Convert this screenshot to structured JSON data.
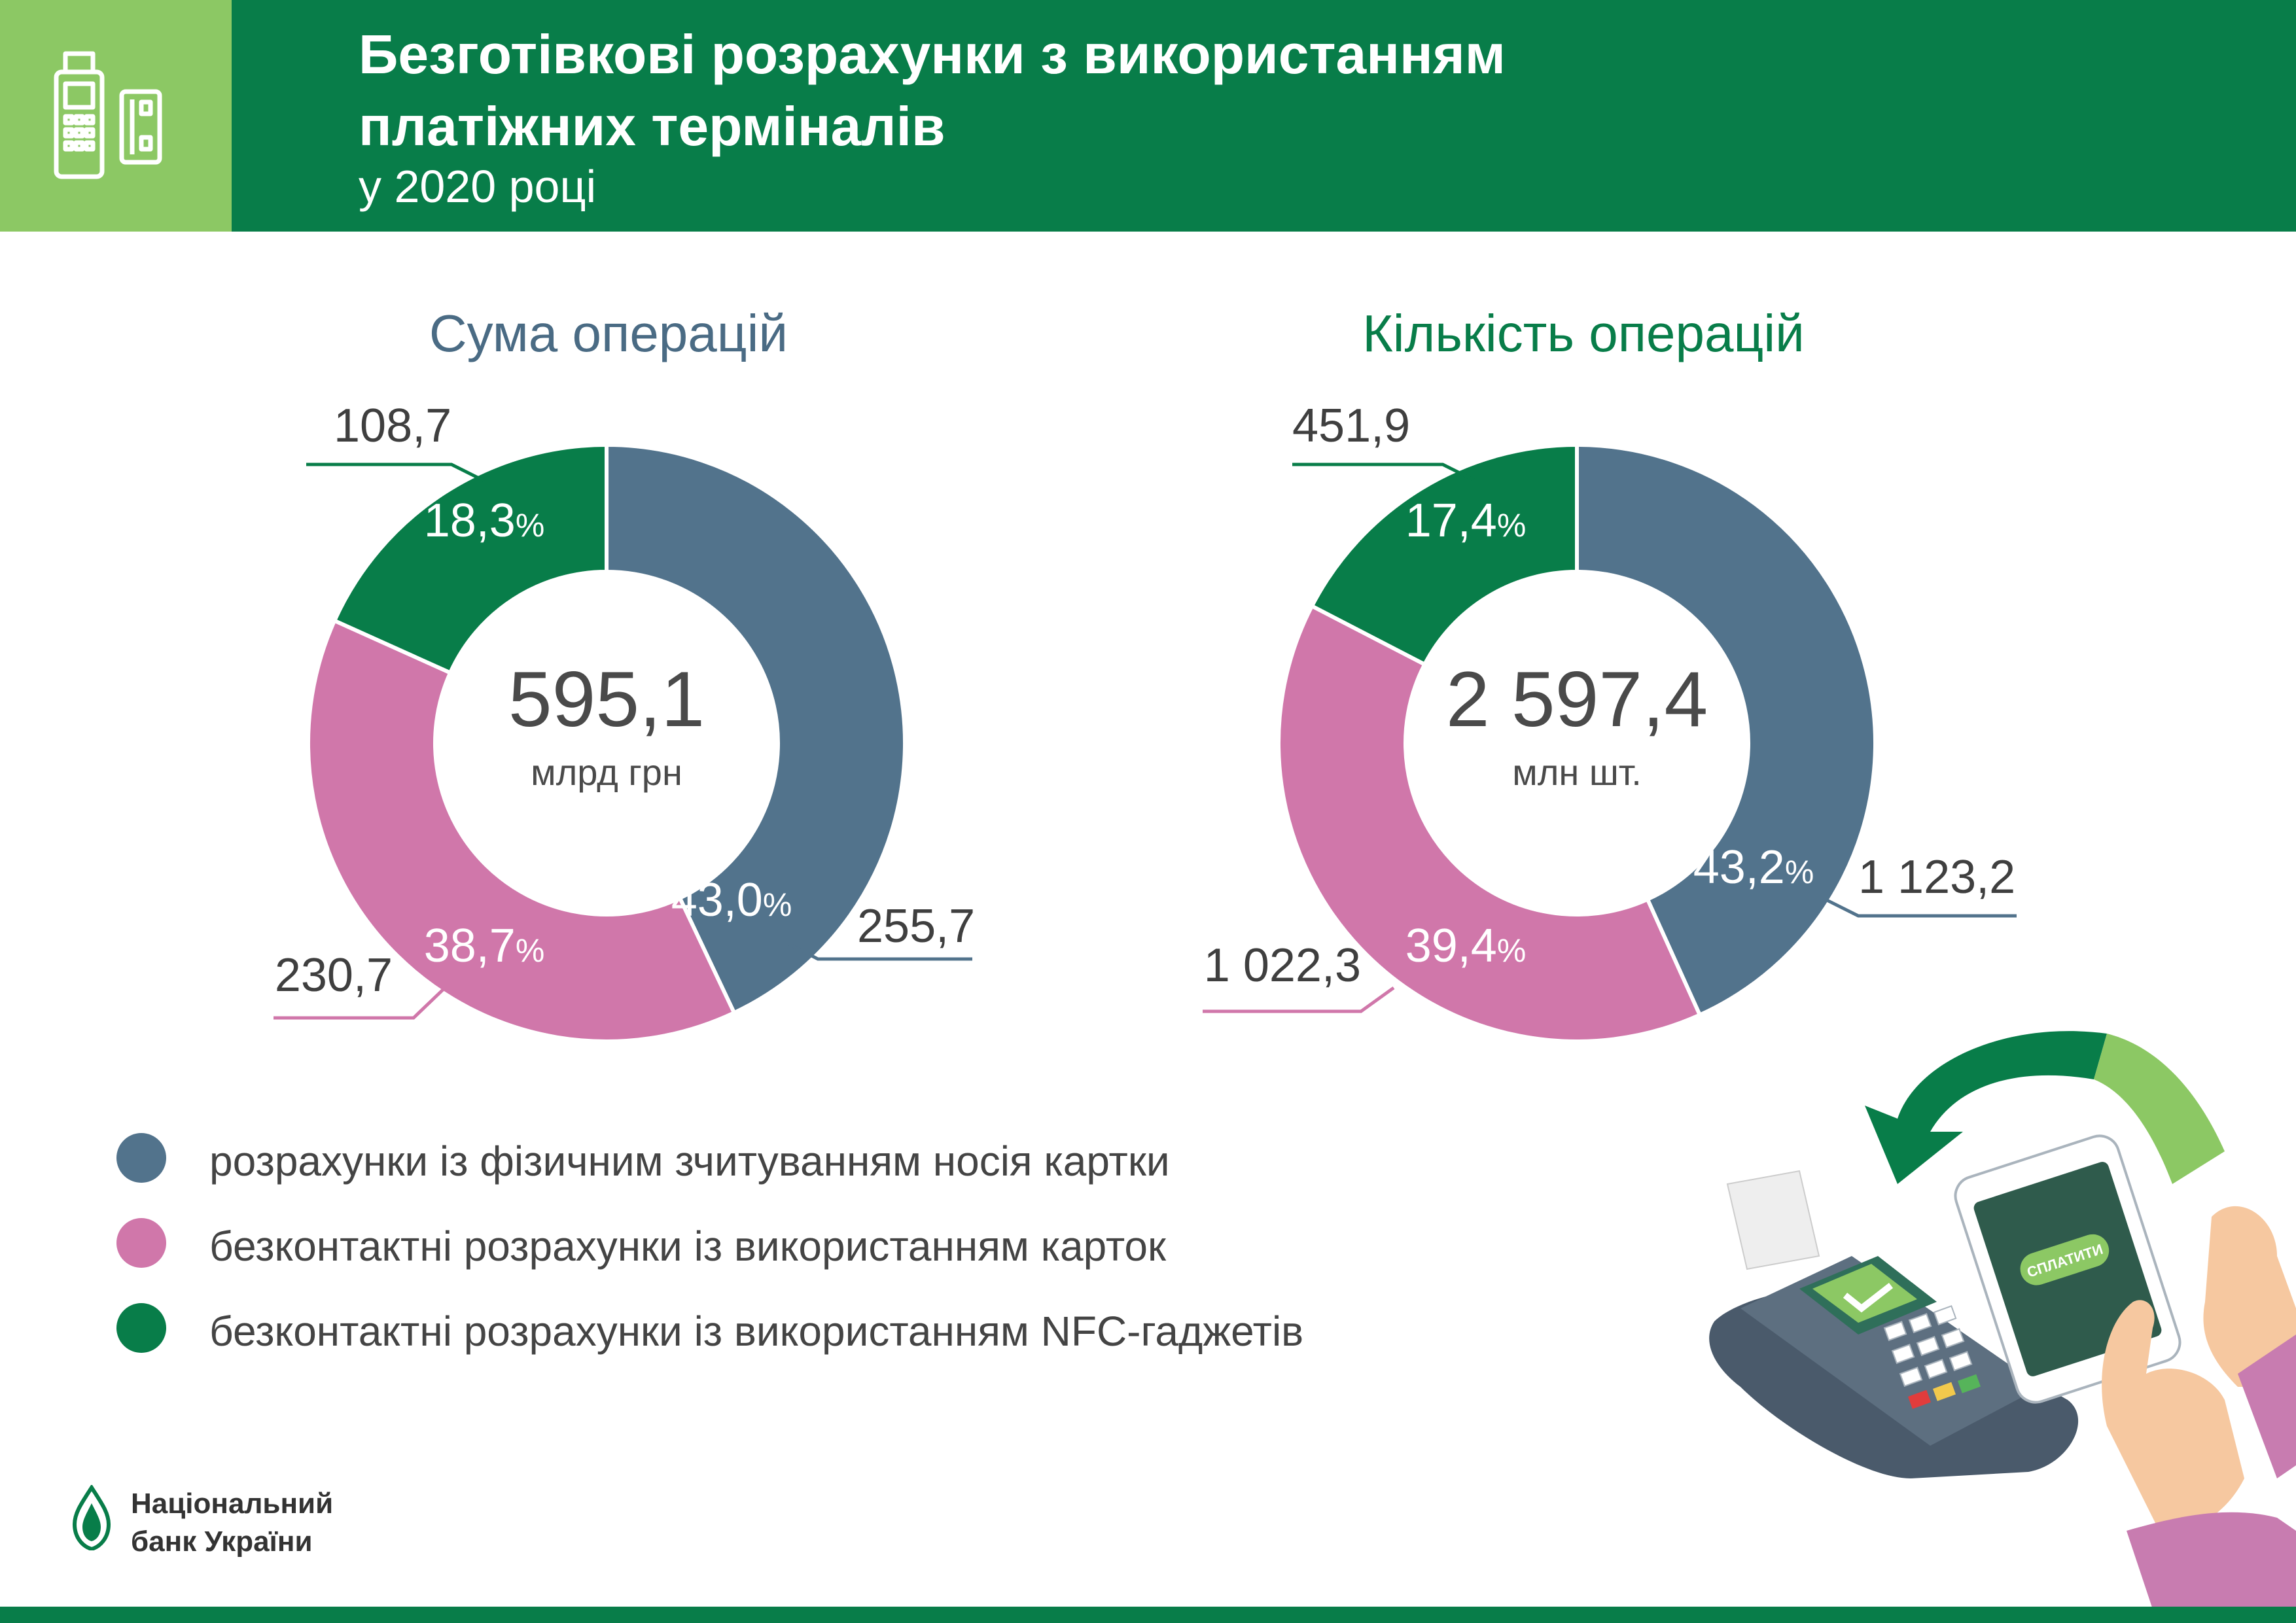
{
  "header": {
    "title_line1": "Безготівкові розрахунки з використанням",
    "title_line2": "платіжних терміналів",
    "subtitle": "у 2020 році",
    "icon": "payment-terminal-card-icon"
  },
  "colors": {
    "header_green": "#087d49",
    "header_light_green": "#8cc864",
    "series_contact": "#52738c",
    "series_contactless_card": "#d077aa",
    "series_nfc": "#087d49"
  },
  "chart_data": [
    {
      "type": "pie",
      "title": "Сума операцій",
      "center_value": "595,1",
      "center_unit": "млрд грн",
      "slices": [
        {
          "label": "розрахунки із фізичним зчитуванням носія картки",
          "value": 255.7,
          "value_label": "255,7",
          "percent": 43.0,
          "percent_label": "43,0"
        },
        {
          "label": "безконтактні розрахунки із використанням карток",
          "value": 230.7,
          "value_label": "230,7",
          "percent": 38.7,
          "percent_label": "38,7"
        },
        {
          "label": "безконтактні розрахунки із використанням NFC-гаджетів",
          "value": 108.7,
          "value_label": "108,7",
          "percent": 18.3,
          "percent_label": "18,3"
        }
      ],
      "percent_sign": "%"
    },
    {
      "type": "pie",
      "title": "Кількість операцій",
      "center_value": "2 597,4",
      "center_unit": "млн шт.",
      "slices": [
        {
          "label": "розрахунки із фізичним зчитуванням носія картки",
          "value": 1123.2,
          "value_label": "1 123,2",
          "percent": 43.2,
          "percent_label": "43,2"
        },
        {
          "label": "безконтактні розрахунки із використанням карток",
          "value": 1022.3,
          "value_label": "1 022,3",
          "percent": 39.4,
          "percent_label": "39,4"
        },
        {
          "label": "безконтактні розрахунки із використанням NFC-гаджетів",
          "value": 451.9,
          "value_label": "451,9",
          "percent": 17.4,
          "percent_label": "17,4"
        }
      ],
      "percent_sign": "%"
    }
  ],
  "legend": [
    {
      "label": "розрахунки із фізичним зчитуванням носія картки",
      "color": "#52738c"
    },
    {
      "label": "безконтактні розрахунки із використанням карток",
      "color": "#d077aa"
    },
    {
      "label": "безконтактні розрахунки із використанням NFC-гаджетів",
      "color": "#087d49"
    }
  ],
  "logo": {
    "line1": "Національний",
    "line2": "банк України"
  },
  "illustration": {
    "button_label": "СПЛАТИТИ"
  }
}
